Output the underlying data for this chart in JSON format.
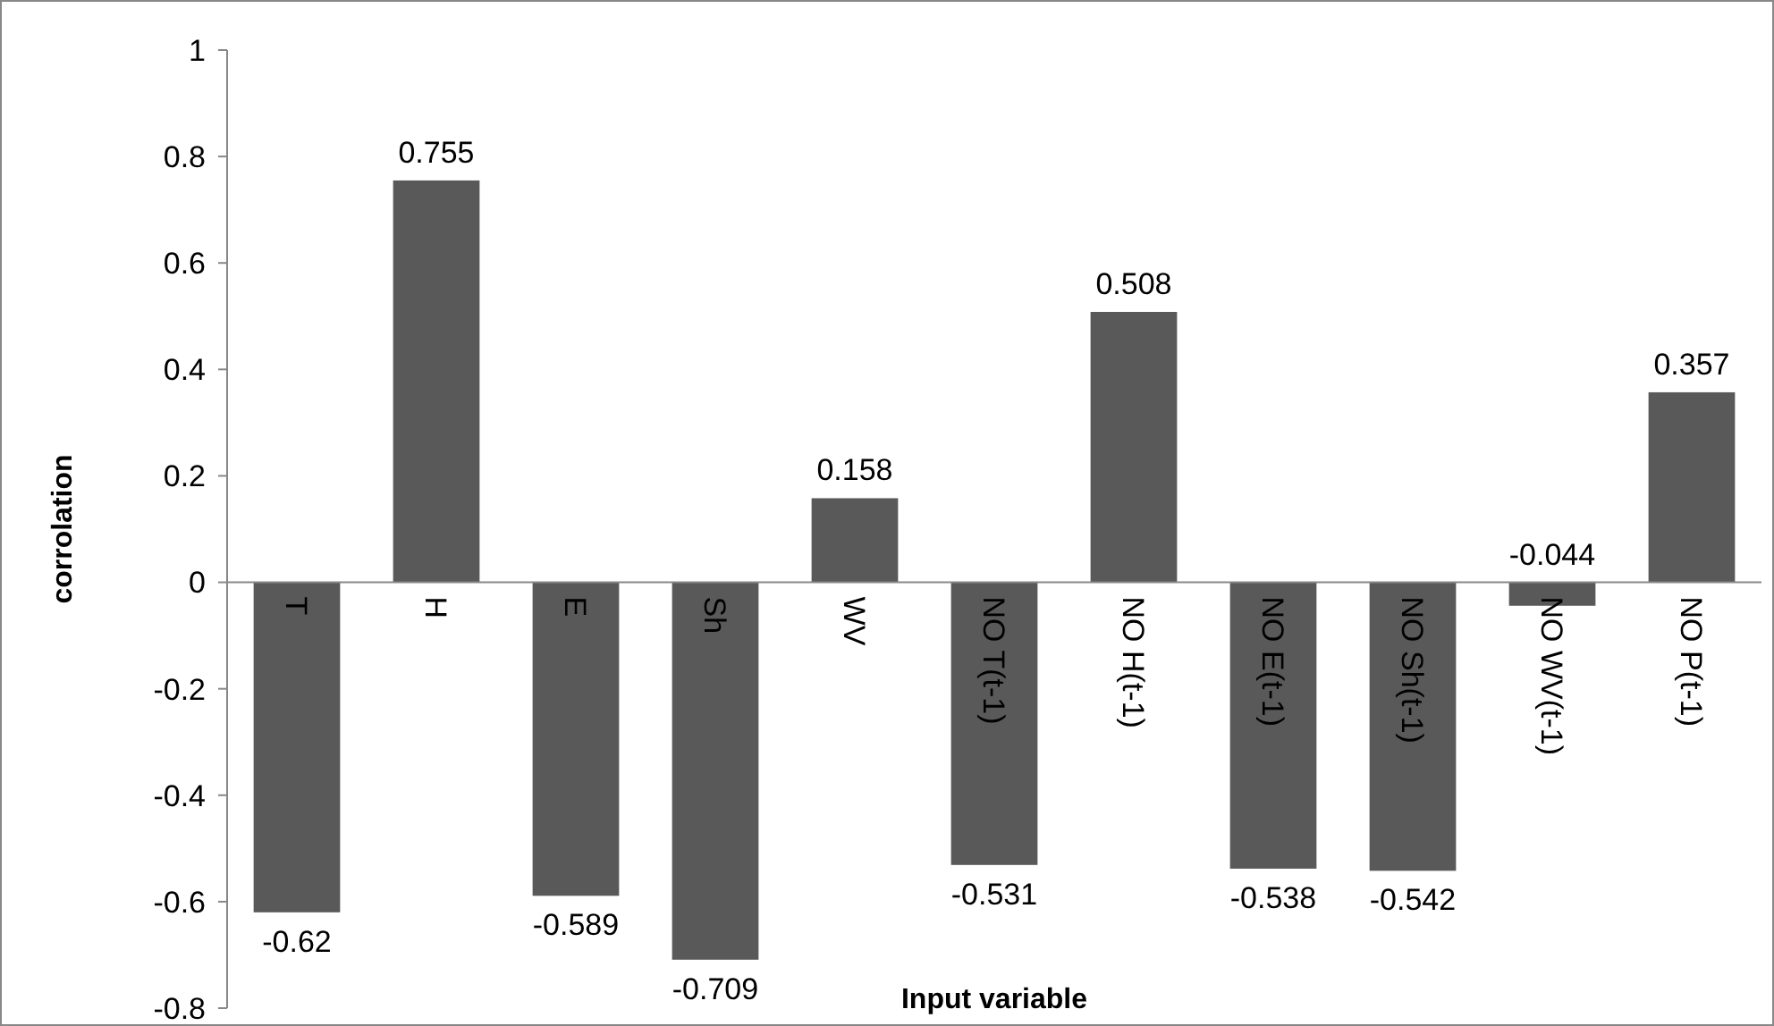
{
  "chart_data": {
    "type": "bar",
    "xlabel": "Input variable",
    "ylabel": "corrolation",
    "categories": [
      "T",
      "H",
      "E",
      "Sh",
      "WV",
      "NO T(t-1)",
      "NO H(t-1)",
      "NO E(t-1)",
      "NO Sh(t-1)",
      "NO WV(t-1)",
      "NO P(t-1)"
    ],
    "values": [
      -0.62,
      0.755,
      -0.589,
      -0.709,
      0.158,
      -0.531,
      0.508,
      -0.538,
      -0.542,
      -0.044,
      0.357
    ],
    "color": "#595959",
    "ylim": [
      -0.8,
      1
    ],
    "yticks": [
      -0.8,
      -0.6,
      -0.4,
      -0.2,
      0,
      0.2,
      0.4,
      0.6,
      0.8,
      1
    ],
    "data_labels": true
  }
}
